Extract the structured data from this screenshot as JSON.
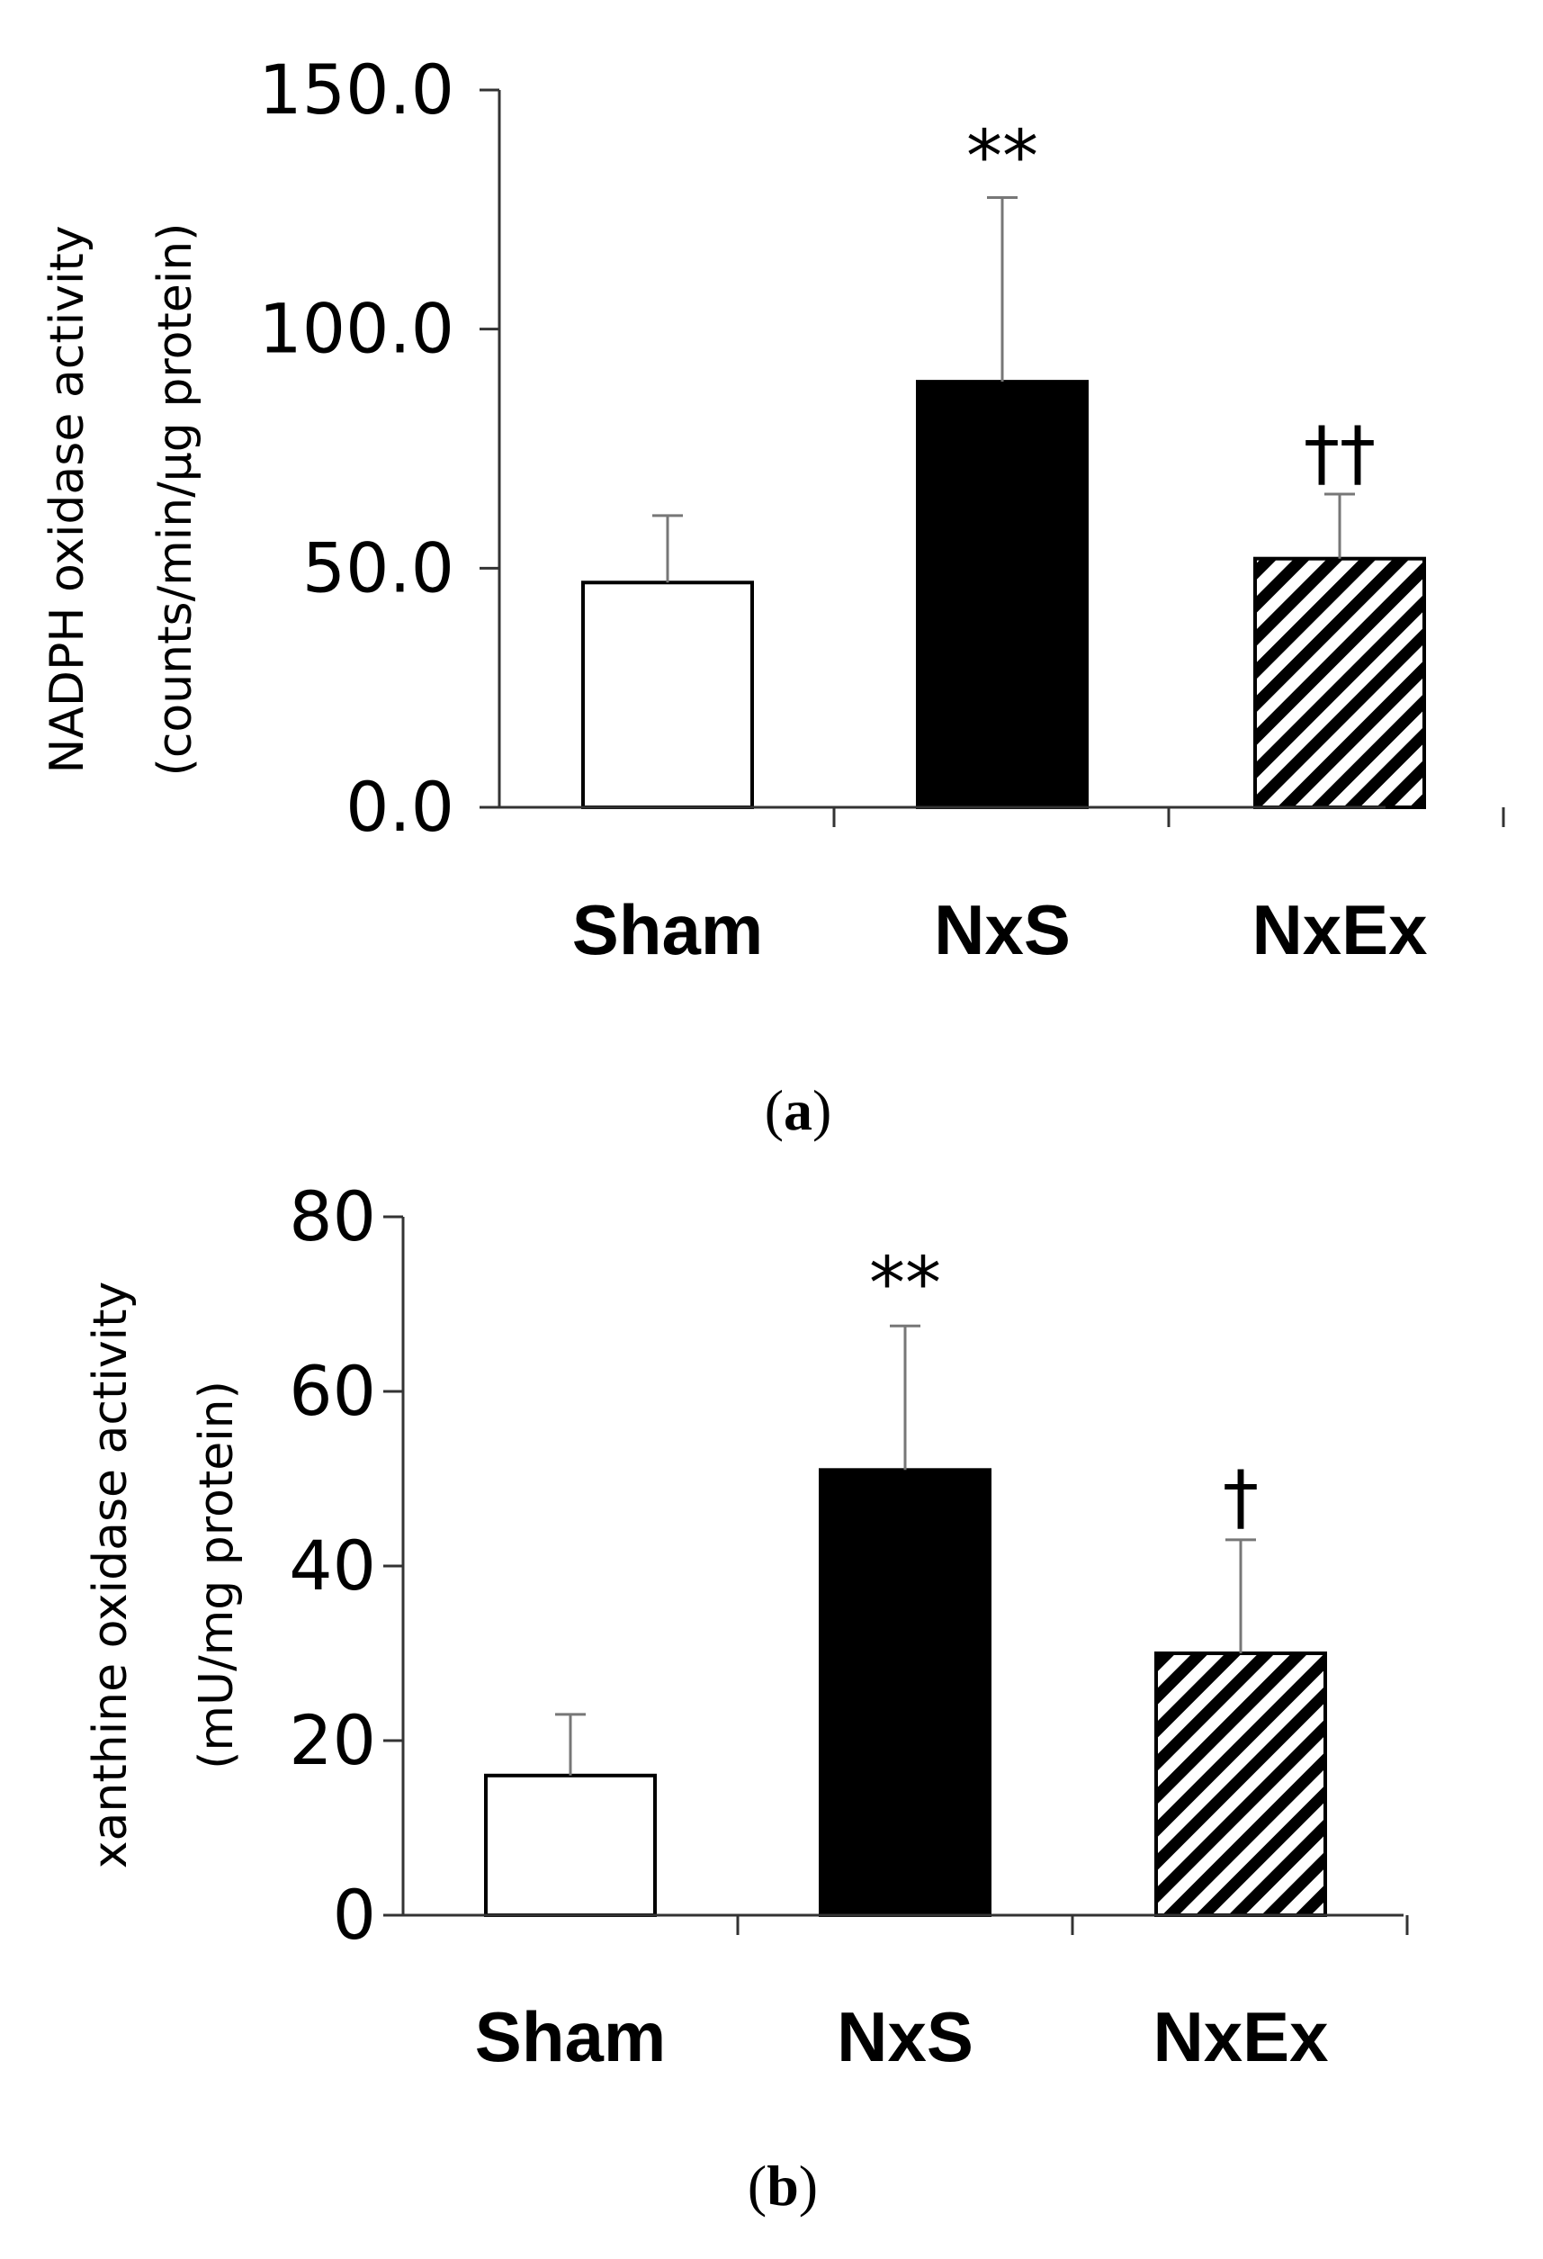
{
  "chart_data": [
    {
      "type": "bar",
      "panel": "a",
      "categories": [
        "Sham",
        "NxS",
        "NxEx"
      ],
      "values": [
        47,
        89,
        52
      ],
      "errors": [
        14,
        38.5,
        13.5
      ],
      "significance": [
        "",
        "**",
        "††"
      ],
      "fills": [
        "white",
        "black",
        "hatched"
      ],
      "ylabel_line1": "NADPH oxidase activity",
      "ylabel_line2": "(counts/min/μg protein)",
      "ylim": [
        0,
        150
      ],
      "yticks": [
        "0.0",
        "50.0",
        "100.0",
        "150.0"
      ],
      "caption_letter": "a"
    },
    {
      "type": "bar",
      "panel": "b",
      "categories": [
        "Sham",
        "NxS",
        "NxEx"
      ],
      "values": [
        16,
        51,
        30
      ],
      "errors": [
        7,
        16.5,
        13
      ],
      "significance": [
        "",
        "**",
        "†"
      ],
      "fills": [
        "white",
        "black",
        "hatched"
      ],
      "ylabel_line1": "xanthine oxidase activity",
      "ylabel_line2": "(mU/mg protein)",
      "ylim": [
        0,
        80
      ],
      "yticks": [
        "0",
        "20",
        "40",
        "60",
        "80"
      ],
      "caption_letter": "b"
    }
  ],
  "captions": {
    "open": "(",
    "close": ")"
  }
}
